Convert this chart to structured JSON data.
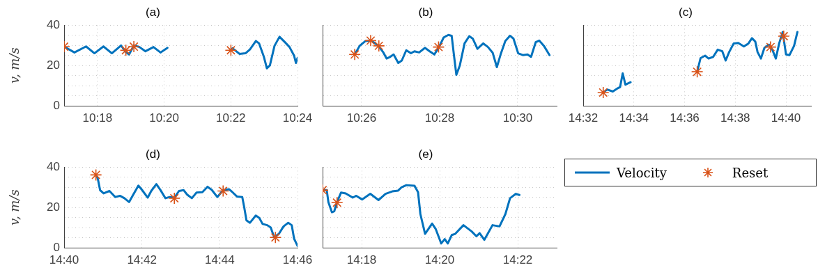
{
  "chart_data": [
    {
      "type": "line",
      "title": "(a)",
      "ylabel": "v, m/s",
      "legend": "right",
      "xlim": [
        10.28333,
        10.4
      ],
      "ylim": [
        0,
        40
      ],
      "xticks": [
        {
          "value": 10.3,
          "label": "10:18"
        },
        {
          "value": 10.33333,
          "label": "10:20"
        },
        {
          "value": 10.36667,
          "label": "10:22"
        },
        {
          "value": 10.4,
          "label": "10:24"
        }
      ],
      "yticks": [
        0,
        {
          "value": 5,
          "label": null
        },
        {
          "value": 10,
          "label": null
        },
        {
          "value": 15,
          "label": null
        },
        20,
        {
          "value": 25,
          "label": null
        },
        {
          "value": 30,
          "label": null
        },
        {
          "value": 35,
          "label": null
        },
        40
      ],
      "grid": true,
      "series": [
        {
          "name": "Velocity",
          "color": "#0072bd",
          "x": [
            10.28333,
            10.2885,
            10.2943,
            10.2985,
            10.303,
            10.3072,
            10.3118,
            10.3142,
            10.3158,
            10.3182,
            10.321,
            10.324,
            10.328,
            10.3315,
            10.335,
            10.35,
            10.3667,
            10.3675,
            10.371,
            10.374,
            10.3762,
            10.3792,
            10.3808,
            10.3832,
            10.3847,
            10.3862,
            10.3885,
            10.391,
            10.3937,
            10.396,
            10.3983,
            10.3992,
            10.4
          ],
          "values": [
            29.4,
            26.5,
            29.5,
            26.1,
            29.5,
            26.1,
            30,
            26.7,
            25.5,
            30,
            29.2,
            27.1,
            29.2,
            26.5,
            28.8,
            null,
            27.6,
            28.6,
            25.8,
            26.1,
            28,
            32.2,
            31,
            24.3,
            18.6,
            20.1,
            29.8,
            34.3,
            31.6,
            29.2,
            24.9,
            21.3,
            23.7
          ]
        },
        {
          "name": "Reset",
          "type": "scatter",
          "color": "#d95319",
          "marker": "cross",
          "x": [
            10.28333,
            10.3142,
            10.3182,
            10.3667
          ],
          "values": [
            29.4,
            27.6,
            29.4,
            27.6
          ]
        }
      ]
    },
    {
      "type": "line",
      "title": "(b)",
      "tick_labels": "x",
      "xlim": [
        10.41667,
        10.51667
      ],
      "ylim": [
        0,
        40
      ],
      "xticks": [
        {
          "value": 10.43333,
          "label": "10:26"
        },
        {
          "value": 10.46667,
          "label": "10:28"
        },
        {
          "value": 10.5,
          "label": "10:30"
        }
      ],
      "yticks": [
        0,
        {
          "value": 5,
          "label": null
        },
        {
          "value": 10,
          "label": null
        },
        {
          "value": 15,
          "label": null
        },
        20,
        {
          "value": 25,
          "label": null
        },
        {
          "value": 30,
          "label": null
        },
        {
          "value": 35,
          "label": null
        },
        40
      ],
      "grid": true,
      "series": [
        {
          "color": "#0072bd",
          "x": [
            10.4304,
            10.4325,
            10.435,
            10.4375,
            10.4405,
            10.4425,
            10.444,
            10.4455,
            10.447,
            10.449,
            10.4505,
            10.4524,
            10.4544,
            10.4559,
            10.4579,
            10.4604,
            10.4624,
            10.4644,
            10.4664,
            10.4684,
            10.4704,
            10.4718,
            10.4728,
            10.4738,
            10.4753,
            10.4773,
            10.4793,
            10.4808,
            10.4828,
            10.4853,
            10.4873,
            10.4893,
            10.4911,
            10.4927,
            10.4947,
            10.4967,
            10.4982,
            10.5002,
            10.5022,
            10.5042,
            10.5057,
            10.5077,
            10.5092,
            10.5112,
            10.5136
          ],
          "values": [
            25.5,
            29.8,
            32.2,
            32.4,
            29.8,
            26.7,
            23.5,
            24.3,
            25.5,
            21.3,
            22.5,
            27.6,
            26.1,
            27.1,
            26.5,
            28.8,
            27.1,
            25.5,
            29.2,
            34,
            35.2,
            34.8,
            24.9,
            15.4,
            20.1,
            31,
            34.6,
            33.4,
            28.3,
            31,
            29.2,
            26.4,
            19.2,
            25.5,
            32.2,
            34.8,
            33.4,
            26.1,
            25.2,
            25.5,
            24.3,
            31.6,
            32.4,
            29.8,
            25.2
          ]
        },
        {
          "type": "scatter",
          "color": "#d95319",
          "marker": "cross",
          "x": [
            10.4304,
            10.4372,
            10.4407,
            10.4662
          ],
          "values": [
            25.5,
            32.4,
            29.8,
            29.2
          ]
        }
      ]
    },
    {
      "type": "line",
      "title": "(c)",
      "tick_labels": "x",
      "xlim": [
        14.53333,
        14.68333
      ],
      "ylim": [
        0,
        40
      ],
      "xticks": [
        {
          "value": 14.53333,
          "label": "14:32"
        },
        {
          "value": 14.56667,
          "label": "14:34"
        },
        {
          "value": 14.6,
          "label": "14:36"
        },
        {
          "value": 14.63333,
          "label": "14:38"
        },
        {
          "value": 14.66667,
          "label": "14:40"
        }
      ],
      "yticks": [
        0,
        {
          "value": 5,
          "label": null
        },
        {
          "value": 10,
          "label": null
        },
        {
          "value": 15,
          "label": null
        },
        20,
        {
          "value": 25,
          "label": null
        },
        {
          "value": 30,
          "label": null
        },
        {
          "value": 35,
          "label": null
        },
        40
      ],
      "grid": true,
      "series": [
        {
          "color": "#0072bd",
          "x": [
            14.5465,
            14.5491,
            14.5528,
            14.5561,
            14.5576,
            14.5593,
            14.5611,
            14.5645,
            14.585,
            14.6083,
            14.6105,
            14.6135,
            14.6158,
            14.6188,
            14.6218,
            14.6248,
            14.627,
            14.6293,
            14.6323,
            14.6353,
            14.639,
            14.642,
            14.6443,
            14.6465,
            14.648,
            14.6502,
            14.6525,
            14.6555,
            14.6577,
            14.66,
            14.6622,
            14.6645,
            14.6667,
            14.669,
            14.672,
            14.6742
          ],
          "values": [
            6.6,
            8.1,
            7.1,
            8.7,
            9.3,
            16.1,
            10.5,
            11.7,
            null,
            16.9,
            23.7,
            24.9,
            23.5,
            24.3,
            27.9,
            27.1,
            22.5,
            26.7,
            31,
            31.2,
            29.5,
            31,
            33.6,
            31.9,
            26.7,
            23.5,
            28.8,
            30.4,
            27.9,
            23.5,
            31,
            36.7,
            25.5,
            25.2,
            29.8,
            36.7
          ]
        },
        {
          "type": "scatter",
          "color": "#d95319",
          "marker": "cross",
          "x": [
            14.5465,
            14.6083,
            14.6565,
            14.6652
          ],
          "values": [
            6.6,
            16.9,
            29.2,
            34.6
          ]
        }
      ]
    },
    {
      "type": "line",
      "title": "(d)",
      "ylabel": "v, m/s",
      "xlim": [
        14.66667,
        14.76667
      ],
      "ylim": [
        0,
        40
      ],
      "xticks": [
        {
          "value": 14.66667,
          "label": "14:40"
        },
        {
          "value": 14.7,
          "label": "14:42"
        },
        {
          "value": 14.73333,
          "label": "14:44"
        },
        {
          "value": 14.76667,
          "label": "14:46"
        }
      ],
      "yticks": [
        0,
        {
          "value": 5,
          "label": null
        },
        {
          "value": 10,
          "label": null
        },
        {
          "value": 15,
          "label": null
        },
        20,
        {
          "value": 25,
          "label": null
        },
        {
          "value": 30,
          "label": null
        },
        {
          "value": 35,
          "label": null
        },
        40
      ],
      "grid": true,
      "series": [
        {
          "color": "#0072bd",
          "x": [
            14.6803,
            14.6811,
            14.6821,
            14.6836,
            14.6861,
            14.6886,
            14.6906,
            14.6925,
            14.6945,
            14.696,
            14.6985,
            14.7,
            14.7025,
            14.704,
            14.7062,
            14.708,
            14.7101,
            14.7119,
            14.7139,
            14.7159,
            14.7179,
            14.7194,
            14.7214,
            14.7234,
            14.7259,
            14.7281,
            14.7299,
            14.7323,
            14.7348,
            14.7373,
            14.7388,
            14.7408,
            14.743,
            14.7438,
            14.7448,
            14.7463,
            14.7488,
            14.7503,
            14.7517,
            14.7537,
            14.7552,
            14.7567,
            14.7587,
            14.7607,
            14.7627,
            14.7642,
            14.7652,
            14.76667
          ],
          "values": [
            36.2,
            34.4,
            28.6,
            27,
            28.2,
            25.2,
            25.8,
            24.6,
            22.7,
            25.8,
            30.9,
            28.8,
            24.9,
            28.2,
            31.6,
            28.6,
            24.6,
            25.2,
            24.9,
            28.2,
            28.6,
            26.4,
            24.6,
            27.4,
            27.6,
            30.3,
            28.8,
            25.2,
            28.6,
            29.1,
            27.6,
            25.4,
            25.2,
            20.3,
            13.6,
            12.4,
            16,
            14.8,
            11.8,
            11.2,
            10,
            5.1,
            6.9,
            10.6,
            12.4,
            11.2,
            4.5,
            0.9
          ]
        },
        {
          "type": "scatter",
          "color": "#d95319",
          "marker": "cross",
          "x": [
            14.6803,
            14.7139,
            14.7348,
            14.7572
          ],
          "values": [
            36.2,
            24.6,
            28.2,
            5.1
          ]
        }
      ]
    },
    {
      "type": "line",
      "title": "(e)",
      "tick_labels": "x",
      "xlim": [
        14.28333,
        14.38333
      ],
      "ylim": [
        0,
        40
      ],
      "xticks": [
        {
          "value": 14.3,
          "label": "14:18"
        },
        {
          "value": 14.33333,
          "label": "14:20"
        },
        {
          "value": 14.36667,
          "label": "14:22"
        }
      ],
      "yticks": [
        0,
        {
          "value": 5,
          "label": null
        },
        {
          "value": 10,
          "label": null
        },
        {
          "value": 15,
          "label": null
        },
        20,
        {
          "value": 25,
          "label": null
        },
        {
          "value": 30,
          "label": null
        },
        {
          "value": 35,
          "label": null
        },
        40
      ],
      "grid": true,
      "series": [
        {
          "color": "#0072bd",
          "x": [
            14.28333,
            14.2851,
            14.2858,
            14.2873,
            14.2883,
            14.2895,
            14.2912,
            14.2932,
            14.2962,
            14.2977,
            14.3002,
            14.3037,
            14.3072,
            14.3102,
            14.3131,
            14.3156,
            14.3171,
            14.3191,
            14.3226,
            14.3241,
            14.3251,
            14.3271,
            14.3301,
            14.3316,
            14.334,
            14.3355,
            14.3368,
            14.3385,
            14.34,
            14.3435,
            14.347,
            14.349,
            14.3504,
            14.3524,
            14.3559,
            14.3589,
            14.3614,
            14.3634,
            14.3659,
            14.3674
          ],
          "values": [
            28.6,
            28.6,
            22.7,
            17.6,
            18.1,
            22.7,
            27.4,
            27,
            24.9,
            25.8,
            24,
            26.8,
            23.7,
            26.8,
            28,
            28.4,
            30.1,
            31.1,
            30.8,
            27.6,
            16.7,
            6.9,
            12,
            9.4,
            2.1,
            4.3,
            2.1,
            6.3,
            6.9,
            11.2,
            8.1,
            5.7,
            7.2,
            3.9,
            11.2,
            10.6,
            16.7,
            24.6,
            26.8,
            26.2
          ]
        },
        {
          "type": "scatter",
          "color": "#d95319",
          "marker": "cross",
          "x": [
            14.28333,
            14.2895
          ],
          "values": [
            28.6,
            22.4
          ]
        }
      ]
    }
  ]
}
